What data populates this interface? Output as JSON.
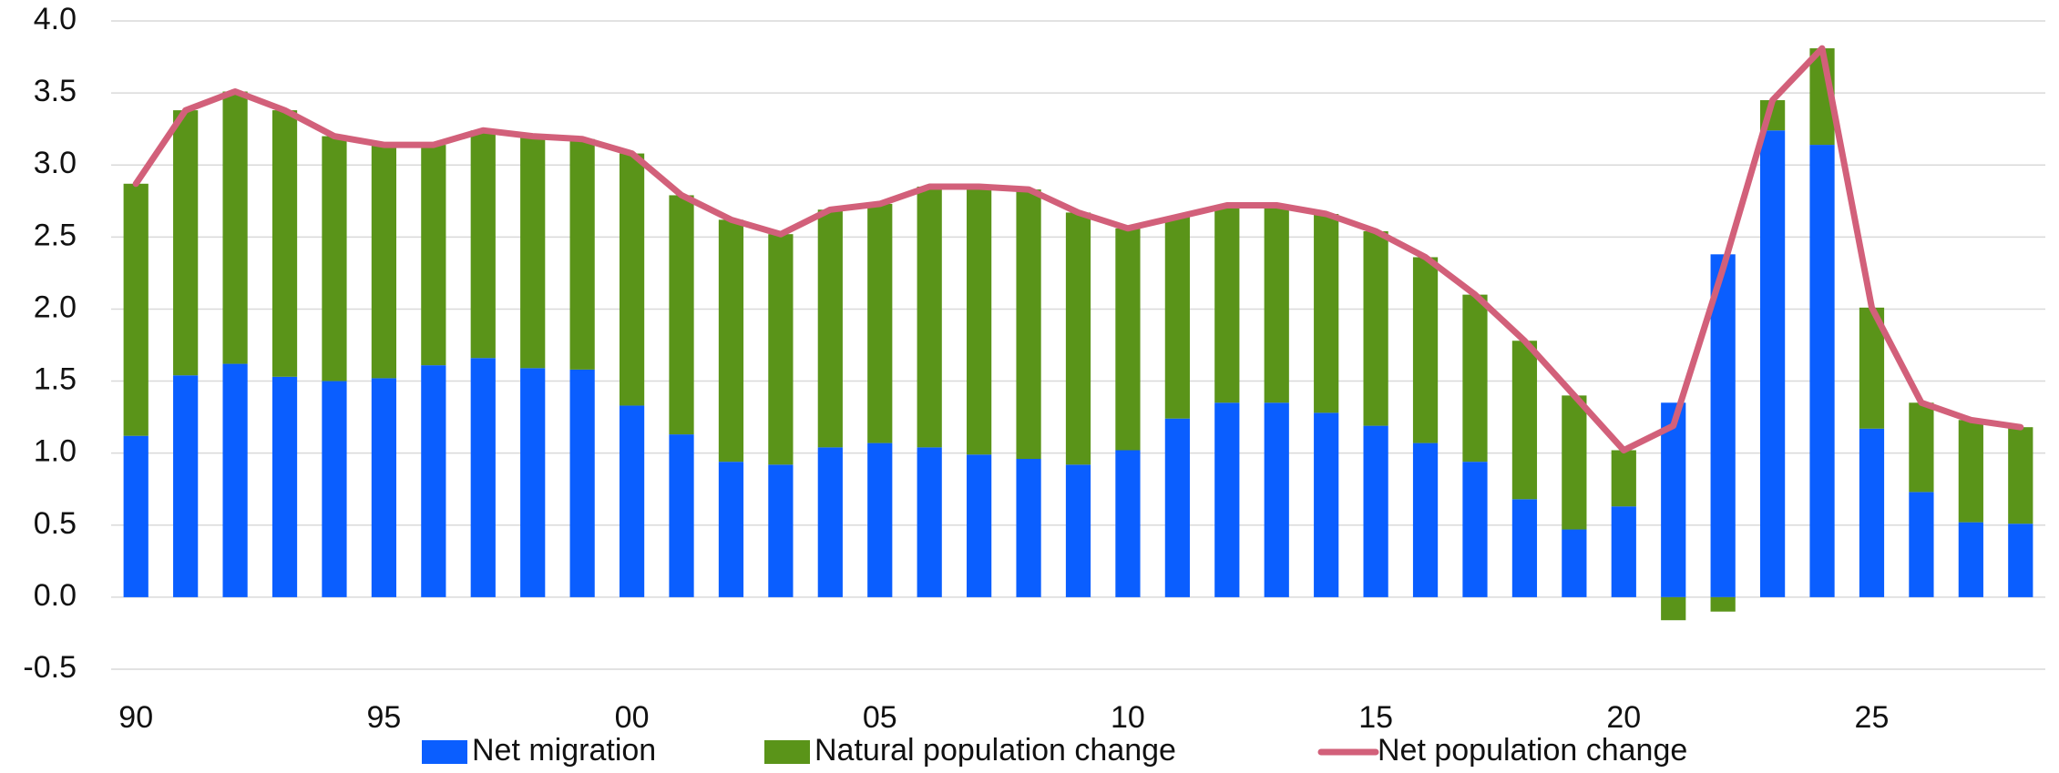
{
  "chart_data": {
    "type": "stacked-bar-line",
    "categories": [
      "90",
      null,
      null,
      null,
      null,
      "95",
      null,
      null,
      null,
      null,
      "00",
      null,
      null,
      null,
      null,
      "05",
      null,
      null,
      null,
      null,
      "10",
      null,
      null,
      null,
      null,
      "15",
      null,
      null,
      null,
      null,
      "20",
      null,
      null,
      null,
      null,
      "25",
      null,
      null,
      null
    ],
    "series": [
      {
        "name": "Net migration",
        "type": "bar",
        "color": "#0a5eff",
        "values": [
          1.12,
          1.54,
          1.62,
          1.53,
          1.5,
          1.52,
          1.61,
          1.66,
          1.59,
          1.58,
          1.33,
          1.13,
          0.94,
          0.92,
          1.04,
          1.07,
          1.04,
          0.99,
          0.96,
          0.92,
          1.02,
          1.24,
          1.35,
          1.35,
          1.28,
          1.19,
          1.07,
          0.94,
          0.68,
          0.47,
          0.63,
          1.35,
          2.38,
          3.24,
          3.14,
          1.17,
          0.73,
          0.52,
          0.51
        ]
      },
      {
        "name": "Natural population change",
        "type": "bar",
        "color": "#5a9419",
        "values": [
          1.75,
          1.84,
          1.89,
          1.85,
          1.7,
          1.62,
          1.53,
          1.58,
          1.61,
          1.6,
          1.75,
          1.66,
          1.68,
          1.6,
          1.65,
          1.66,
          1.81,
          1.86,
          1.87,
          1.75,
          1.54,
          1.4,
          1.37,
          1.37,
          1.38,
          1.35,
          1.29,
          1.16,
          1.1,
          0.93,
          0.39,
          -0.16,
          -0.1,
          0.21,
          0.67,
          0.84,
          0.62,
          0.71,
          0.67
        ]
      },
      {
        "name": "Net population change",
        "type": "line",
        "color": "#d2607a",
        "values": [
          2.87,
          3.38,
          3.51,
          3.38,
          3.2,
          3.14,
          3.14,
          3.24,
          3.2,
          3.18,
          3.08,
          2.79,
          2.62,
          2.52,
          2.69,
          2.73,
          2.85,
          2.85,
          2.83,
          2.67,
          2.56,
          2.64,
          2.72,
          2.72,
          2.66,
          2.54,
          2.36,
          2.1,
          1.78,
          1.4,
          1.02,
          1.19,
          2.28,
          3.45,
          3.81,
          2.01,
          1.35,
          1.23,
          1.18
        ]
      }
    ],
    "ylim": [
      -0.5,
      4.0
    ],
    "yticks": [
      -0.5,
      {
        "value": 0,
        "label": "0.0"
      },
      0.5,
      {
        "value": 1,
        "label": "1.0"
      },
      1.5,
      {
        "value": 2,
        "label": "2.0"
      },
      2.5,
      {
        "value": 3,
        "label": "3.0"
      },
      3.5,
      {
        "value": 4,
        "label": "4.0"
      }
    ],
    "grid": true
  }
}
